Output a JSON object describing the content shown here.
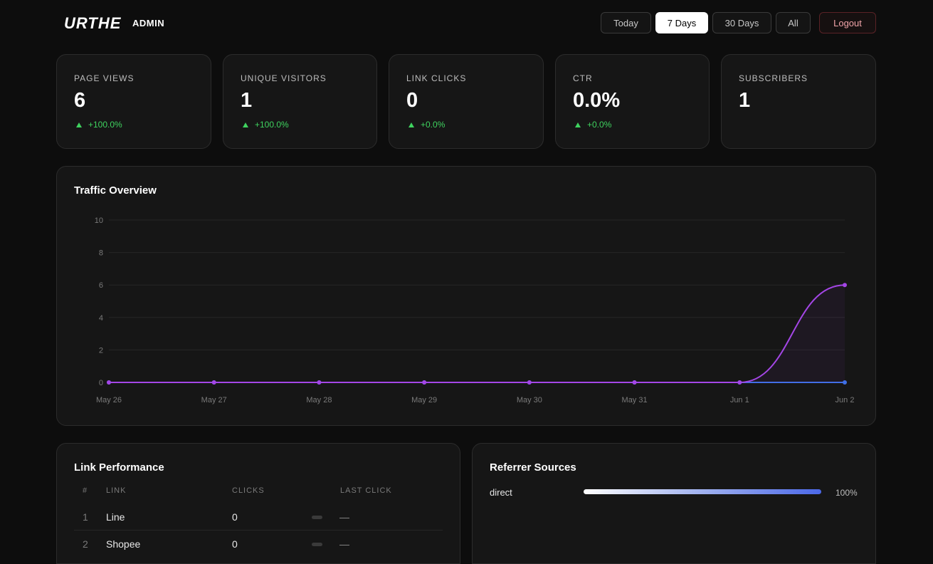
{
  "header": {
    "logo": "URTHE",
    "admin_label": "ADMIN",
    "ranges": [
      "Today",
      "7 Days",
      "30 Days",
      "All"
    ],
    "active_range": "7 Days",
    "logout_label": "Logout"
  },
  "stats": [
    {
      "label": "PAGE VIEWS",
      "value": "6",
      "delta": "+100.0%"
    },
    {
      "label": "UNIQUE VISITORS",
      "value": "1",
      "delta": "+100.0%"
    },
    {
      "label": "LINK CLICKS",
      "value": "0",
      "delta": "+0.0%"
    },
    {
      "label": "CTR",
      "value": "0.0%",
      "delta": "+0.0%"
    },
    {
      "label": "SUBSCRIBERS",
      "value": "1",
      "delta": ""
    }
  ],
  "traffic": {
    "title": "Traffic Overview",
    "chart_data": {
      "type": "line",
      "title": "Traffic Overview",
      "categories": [
        "May 26",
        "May 27",
        "May 28",
        "May 29",
        "May 30",
        "May 31",
        "Jun 1",
        "Jun 2"
      ],
      "series": [
        {
          "name": "",
          "color": "#a446e6",
          "values": [
            0,
            0,
            0,
            0,
            0,
            0,
            0,
            6
          ]
        },
        {
          "name": "",
          "color": "#3f6fe6",
          "values": [
            0,
            0,
            0,
            0,
            0,
            0,
            0,
            0
          ]
        }
      ],
      "ylim": [
        0,
        10
      ],
      "yticks": [
        0,
        2,
        4,
        6,
        8,
        10
      ],
      "grid": true
    }
  },
  "links": {
    "title": "Link Performance",
    "columns": [
      "#",
      "LINK",
      "CLICKS",
      "LAST CLICK"
    ],
    "rows": [
      {
        "num": "1",
        "name": "Line",
        "clicks": "0",
        "last": "—"
      },
      {
        "num": "2",
        "name": "Shopee",
        "clicks": "0",
        "last": "—"
      }
    ]
  },
  "referrers": {
    "title": "Referrer Sources",
    "items": [
      {
        "source": "direct",
        "percent": "100%",
        "share": 1.0
      }
    ]
  }
}
